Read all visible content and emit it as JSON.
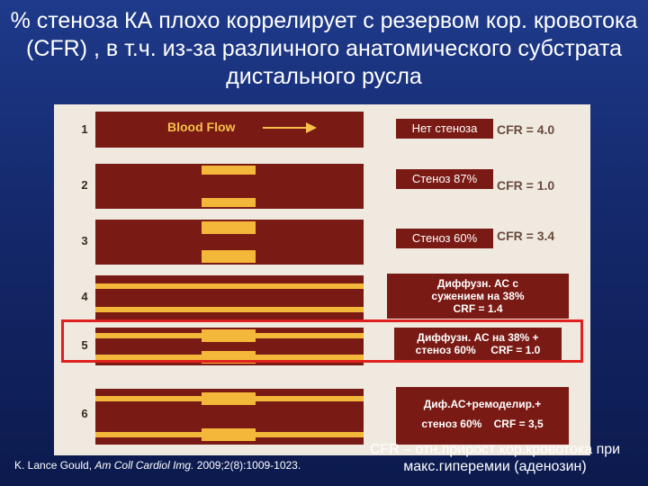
{
  "title": "% стеноза КА плохо коррелирует с резервом кор. кровотока (CFR) , в т.ч. из-за различного анатомического субстрата дистального русла",
  "figure": {
    "flow_label": "Blood Flow",
    "rows": [
      {
        "num": "1",
        "cfr": "CFR = 4.0",
        "label": "Нет стеноза"
      },
      {
        "num": "2",
        "cfr": "CFR = 1.0",
        "label": "Стеноз 87%"
      },
      {
        "num": "3",
        "cfr": "CFR = 3.4",
        "label": "Стеноз 60%"
      },
      {
        "num": "4",
        "label_line1": "Диффузн. АС с",
        "label_line2": "сужением на 38%",
        "label_line3": "CRF = 1.4"
      },
      {
        "num": "5",
        "label_line1": "Диффузн. АС на 38% +",
        "label_line2": "стеноз 60%     CRF = 1.0"
      },
      {
        "num": "6",
        "label_line1": "Диф.АС+ремоделир.+",
        "label_line2": "стеноз 60%    CRF = 3,5"
      }
    ]
  },
  "colors": {
    "wall": "#7a1a14",
    "lumen": "#f3b83a",
    "highlight": "#e0201e",
    "background": "#1e3a8a"
  },
  "citation": {
    "author": "K. Lance Gould, ",
    "journal": "Am Coll Cardiol Img.",
    "ref": "2009;2(8):1009-1023."
  },
  "footnote": "CFR – отн.прирост кор.кровотока при макс.гиперемии (аденозин)"
}
